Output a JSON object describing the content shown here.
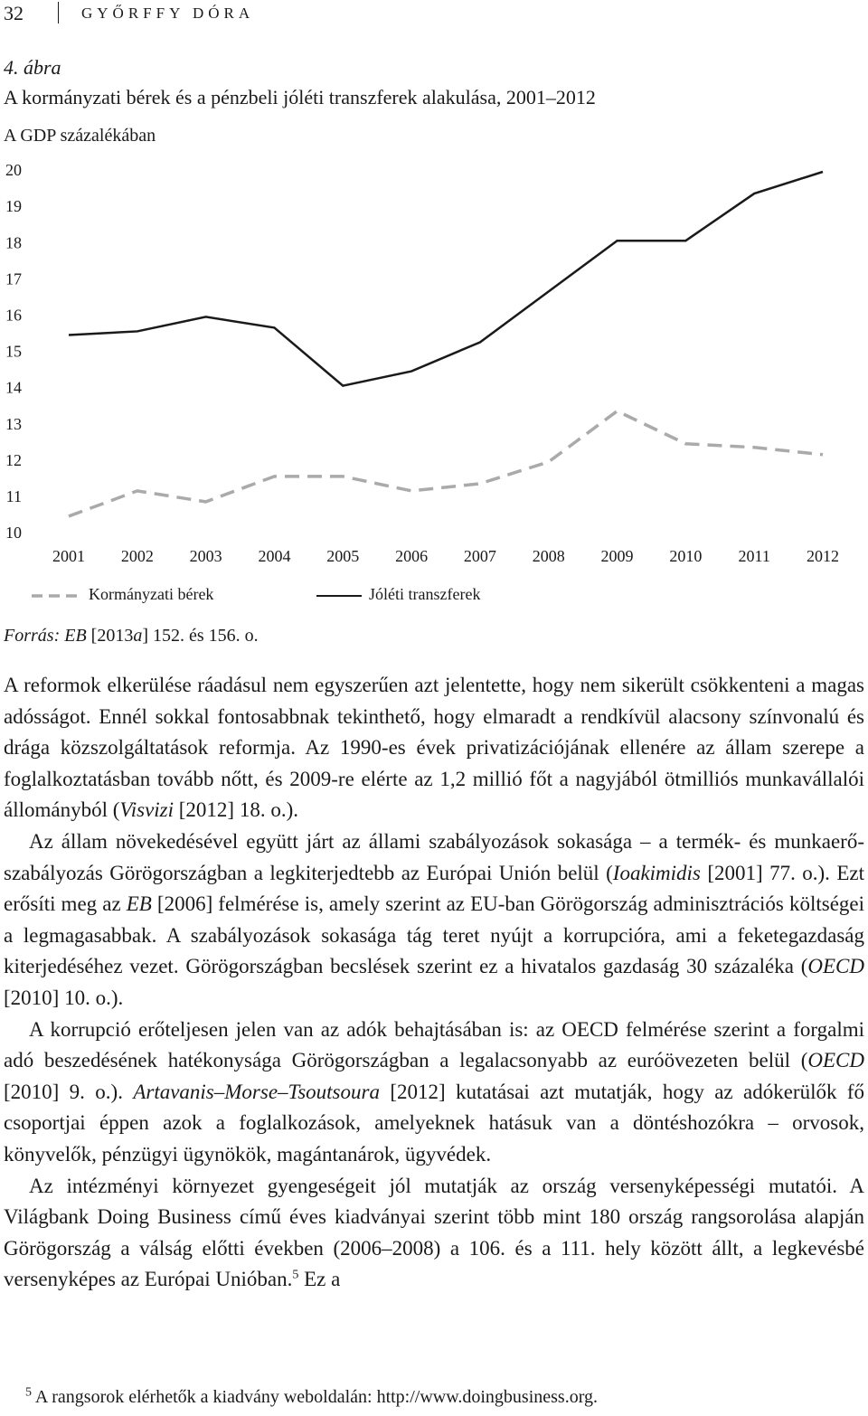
{
  "header": {
    "page_number": "32",
    "author": "GYŐRFFY DÓRA"
  },
  "figure": {
    "label": "4. ábra",
    "title": "A kormányzati bérek és a pénzbeli jóléti transzferek alakulása, 2001–2012",
    "source": [
      "Forrás: EB",
      " [2013",
      "a",
      "] 152. és 156. o."
    ]
  },
  "chart_data": {
    "type": "line",
    "subtitle": "A GDP százalékában",
    "categories": [
      "2001",
      "2002",
      "2003",
      "2004",
      "2005",
      "2006",
      "2007",
      "2008",
      "2009",
      "2010",
      "2011",
      "2012"
    ],
    "ylim": [
      10,
      20
    ],
    "yticks": [
      10,
      11,
      12,
      13,
      14,
      15,
      16,
      17,
      18,
      19,
      20
    ],
    "grid": false,
    "series": [
      {
        "name": "Kormányzati bérek",
        "color": "#aaaaaa",
        "style": "dashed",
        "values": [
          10.5,
          11.2,
          10.9,
          11.6,
          11.6,
          11.2,
          11.4,
          12.0,
          13.4,
          12.5,
          12.4,
          12.2
        ]
      },
      {
        "name": "Jóléti transzferek",
        "color": "#1a1a1a",
        "style": "solid",
        "values": [
          15.5,
          15.6,
          16.0,
          15.7,
          14.1,
          14.5,
          15.3,
          16.7,
          18.1,
          18.1,
          19.4,
          20.0
        ]
      }
    ]
  },
  "body": {
    "paragraphs": [
      [
        "A reformok elkerülése ráadásul nem egyszerűen azt jelentette, hogy nem sikerült csökkenteni a magas adósságot. Ennél sokkal fontosabbnak tekinthető, hogy elmaradt a rendkívül alacsony színvonalú és drága közszolgáltatások reformja. Az 1990-es évek privatizációjának ellenére az állam szerepe a foglalkoztatásban tovább nőtt, és 2009-re elérte az 1,2 millió főt a nagyjából ötmilliós munkavállalói állományból (",
        "Visvizi",
        " [2012] 18. o.)."
      ],
      [
        "Az állam növekedésével együtt járt az állami szabályozások sokasága – a termék- és munkaerő-szabályozás Görögországban a legkiterjedtebb az Európai Unión belül (",
        "Ioakimidis",
        " [2001] 77. o.). Ezt erősíti meg az ",
        "EB",
        " [2006] felmérése is, amely szerint az EU-ban Görögország adminisztrációs költségei a legmagasabbak. A szabályozások sokasága tág teret nyújt a korrupcióra, ami a feketegazdaság kiterjedéséhez vezet. Görögországban becslések szerint ez a hivatalos gazdaság 30 százaléka (",
        "OECD",
        " [2010] 10. o.)."
      ],
      [
        "A korrupció erőteljesen jelen van az adók behajtásában is: az OECD felmérése szerint a forgalmi adó beszedésének hatékonysága Görögországban a legalacsonyabb az euróövezeten belül (",
        "OECD",
        " [2010] 9. o.). ",
        "Artavanis–Morse–Tsoutsoura",
        " [2012] kutatásai azt mutatják, hogy az adókerülők fő csoportjai éppen azok a foglalkozások, amelyeknek hatásuk van a döntéshozókra – orvosok, könyvelők, pénzügyi ügynökök, magántanárok, ügyvédek."
      ]
    ],
    "last_paragraph": {
      "text": "Az intézményi környezet gyengeségeit jól mutatják az ország versenyképességi mutatói. A Világbank Doing Business című éves kiadványai szerint több mint 180 ország rangsorolása alapján Görögország a válság előtti években (2006–2008) a 106. és a 111. hely között állt, a legkevésbé versenyképes az Európai Unióban.",
      "footnote_ref": "5",
      "tail": " Ez a"
    }
  },
  "footnote": {
    "number": "5",
    "text": "A rangsorok elérhetők a kiadvány weboldalán: http://www.doingbusiness.org."
  }
}
